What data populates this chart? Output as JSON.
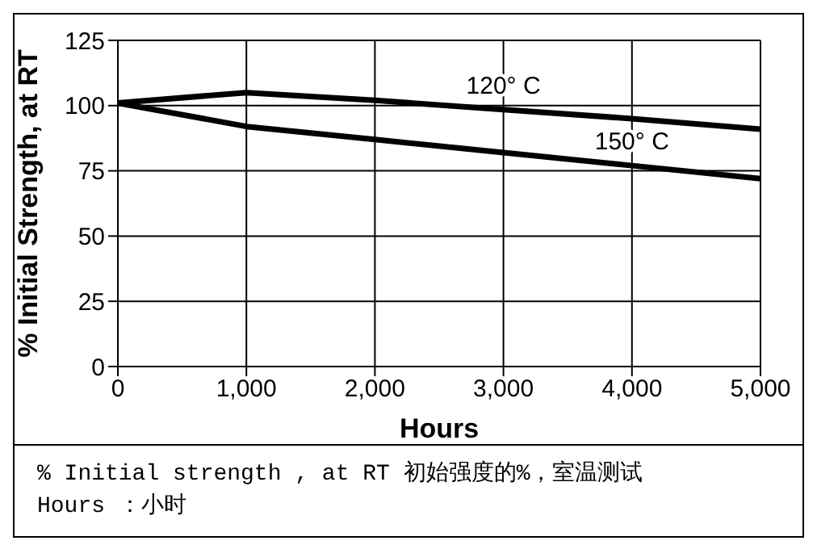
{
  "chart_data": {
    "type": "line",
    "xlabel": "Hours",
    "ylabel": "% Initial Strength, at RT",
    "x": [
      0,
      1000,
      2000,
      3000,
      4000,
      5000
    ],
    "series": [
      {
        "name": "120° C",
        "color": "#000000",
        "values": [
          101,
          105,
          102,
          98.5,
          95,
          91
        ]
      },
      {
        "name": "150° C",
        "color": "#000000",
        "values": [
          101,
          92,
          87,
          82,
          77,
          72
        ]
      }
    ],
    "xlim": [
      0,
      5000
    ],
    "xticks": [
      {
        "value": 0,
        "label": "0"
      },
      {
        "value": 1000,
        "label": "1,000"
      },
      {
        "value": 2000,
        "label": "2,000"
      },
      {
        "value": 3000,
        "label": "3,000"
      },
      {
        "value": 4000,
        "label": "4,000"
      },
      {
        "value": 5000,
        "label": "5,000"
      }
    ],
    "ylim": [
      0,
      125
    ],
    "yticks": [
      0,
      25,
      50,
      75,
      100,
      125
    ],
    "grid": true,
    "legend": false,
    "marker": "none",
    "line_style": "solid",
    "annotations": [
      "% Initial strength , at RT 初始强度的%，室温测试",
      "Hours  ：小时"
    ]
  }
}
